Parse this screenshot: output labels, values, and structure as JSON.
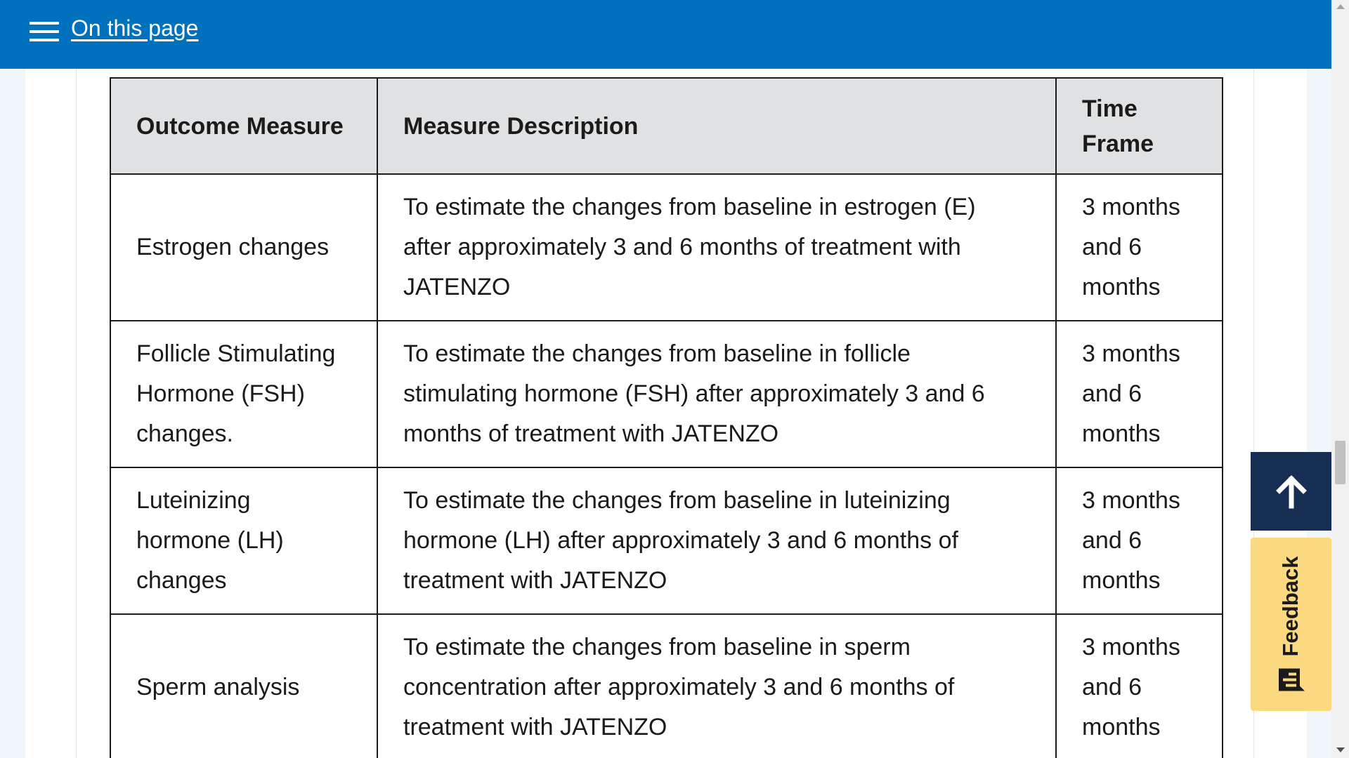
{
  "header": {
    "on_this_page_label": "On this page"
  },
  "table": {
    "headers": [
      "Outcome Measure",
      "Measure Description",
      "Time Frame"
    ],
    "rows": [
      {
        "measure": "Estrogen changes",
        "description": "To estimate the changes from baseline in estrogen (E) after approximately 3 and 6 months of treatment with JATENZO",
        "time_frame": "3 months and 6 months"
      },
      {
        "measure": "Follicle Stimulating Hormone (FSH) changes.",
        "description": "To estimate the changes from baseline in follicle stimulating hormone (FSH) after approximately 3 and 6 months of treatment with JATENZO",
        "time_frame": "3 months and 6 months"
      },
      {
        "measure": "Luteinizing hormone (LH) changes",
        "description": "To estimate the changes from baseline in luteinizing hormone (LH) after approximately 3 and 6 months of treatment with JATENZO",
        "time_frame": "3 months and 6 months"
      },
      {
        "measure": "Sperm analysis",
        "description": "To estimate the changes from baseline in sperm concentration after approximately 3 and 6 months of treatment with JATENZO",
        "time_frame": "3 months and 6 months"
      }
    ]
  },
  "floating": {
    "feedback_label": "Feedback",
    "back_to_top_icon": "arrow-up-icon",
    "feedback_icon": "feedback-icon"
  },
  "colors": {
    "header_bg": "#0071bc",
    "table_header_bg": "#dfe1e2",
    "back_to_top_bg": "#162e51",
    "feedback_bg": "#fad980"
  }
}
